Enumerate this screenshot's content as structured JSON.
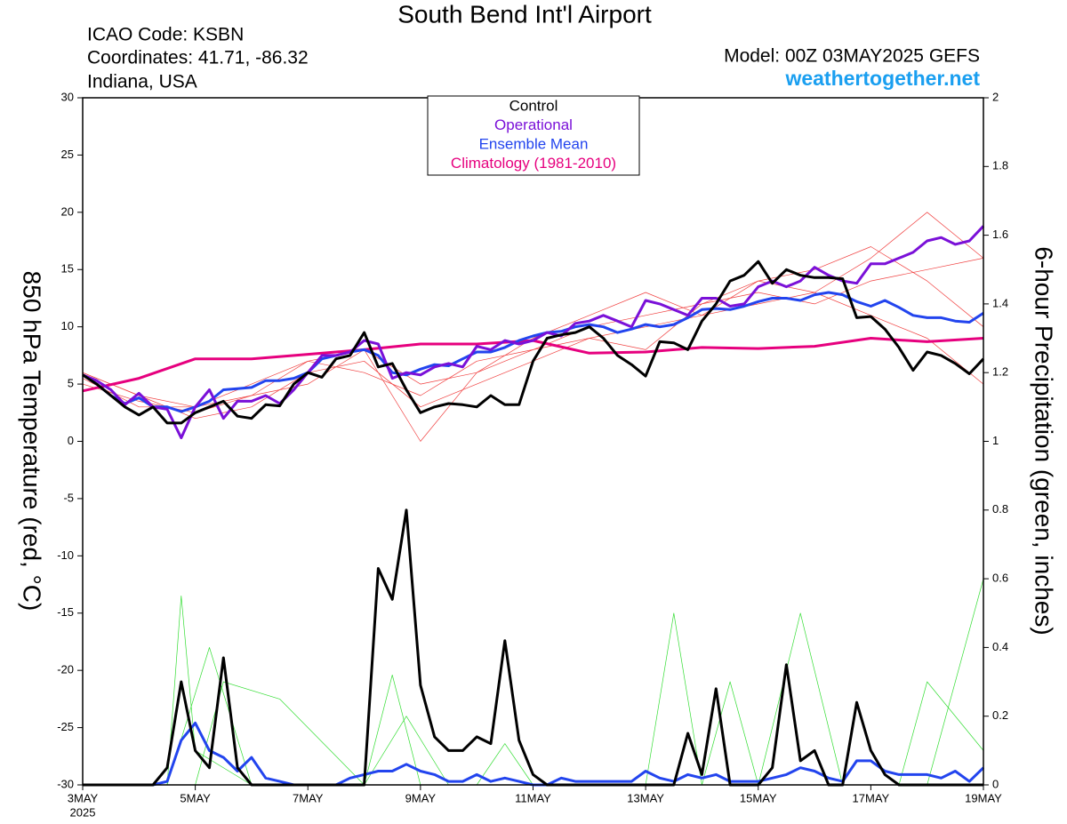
{
  "chart_data": {
    "type": "line",
    "title": "South Bend Int'l Airport",
    "info": [
      "ICAO Code: KSBN",
      "Coordinates: 41.71, -86.32",
      "Indiana, USA"
    ],
    "model": "Model: 00Z 03MAY2025 GEFS",
    "source": "weathertogether.net",
    "year_label": "2025",
    "ylabel": "850 hPa Temperature (red, °C)",
    "y2label": "6-hour Precipitation (green, inches)",
    "x": [
      0,
      0.25,
      0.5,
      0.75,
      1,
      1.25,
      1.5,
      1.75,
      2,
      2.25,
      2.5,
      2.75,
      3,
      3.25,
      3.5,
      3.75,
      4,
      4.25,
      4.5,
      4.75,
      5,
      5.25,
      5.5,
      5.75,
      6,
      6.25,
      6.5,
      6.75,
      7,
      7.25,
      7.5,
      7.75,
      8,
      8.25,
      8.5,
      8.75,
      9,
      9.25,
      9.5,
      9.75,
      10,
      10.25,
      10.5,
      10.75,
      11,
      11.25,
      11.5,
      11.75,
      12,
      12.25,
      12.5,
      12.75,
      13,
      13.25,
      13.5,
      13.75,
      14,
      14.25,
      14.5,
      14.75,
      15,
      15.25,
      15.5,
      15.75,
      16
    ],
    "xlim": [
      0,
      16
    ],
    "xticks": [
      {
        "value": 0,
        "label": "3MAY"
      },
      {
        "value": 2,
        "label": "5MAY"
      },
      {
        "value": 4,
        "label": "7MAY"
      },
      {
        "value": 6,
        "label": "9MAY"
      },
      {
        "value": 8,
        "label": "11MAY"
      },
      {
        "value": 10,
        "label": "13MAY"
      },
      {
        "value": 12,
        "label": "15MAY"
      },
      {
        "value": 14,
        "label": "17MAY"
      },
      {
        "value": 16,
        "label": "19MAY"
      }
    ],
    "ylim": [
      -30,
      30
    ],
    "yticks": [
      -30,
      -25,
      -20,
      -15,
      -10,
      -5,
      0,
      5,
      10,
      15,
      20,
      25,
      30
    ],
    "y2lim": [
      0,
      2
    ],
    "y2ticks": [
      0,
      0.2,
      0.4,
      0.6,
      0.8,
      1,
      1.2,
      1.4,
      1.6,
      1.8,
      2
    ],
    "grid": false,
    "legend": "top-center",
    "series": [
      {
        "color": "#f04040",
        "width": 0.7,
        "x": [
          0,
          1,
          2,
          3,
          4,
          5,
          6,
          7,
          8,
          9,
          10,
          11,
          12,
          13,
          14,
          15,
          16
        ],
        "values": [
          5.5,
          3,
          3,
          4,
          7,
          8,
          5,
          6,
          8,
          10,
          11,
          12,
          14,
          13,
          16,
          20,
          16
        ]
      },
      {
        "color": "#f04040",
        "width": 0.7,
        "x": [
          0,
          1,
          2,
          3,
          4,
          5,
          6,
          7,
          8,
          9,
          10,
          11,
          12,
          13,
          14,
          15,
          16
        ],
        "values": [
          6,
          4,
          2,
          3,
          6,
          7,
          3,
          5,
          7,
          9,
          10,
          11,
          12,
          13,
          11,
          9,
          5
        ]
      },
      {
        "color": "#f04040",
        "width": 0.7,
        "x": [
          0,
          1,
          2,
          3,
          4,
          5,
          6,
          7,
          8,
          9,
          10,
          11,
          12,
          13,
          14,
          15,
          16
        ],
        "values": [
          5,
          3.5,
          2.5,
          4,
          5,
          8,
          0,
          6,
          9,
          11,
          13,
          11,
          14,
          15,
          17,
          14,
          10
        ]
      },
      {
        "color": "#f04040",
        "width": 0.7,
        "x": [
          0,
          1,
          2,
          3,
          4,
          5,
          6,
          7,
          8,
          9,
          10,
          11,
          12,
          13,
          14,
          15,
          16
        ],
        "values": [
          6,
          4,
          3,
          5,
          7,
          6,
          4,
          7,
          8,
          9,
          8,
          12,
          13,
          12,
          14,
          15,
          16
        ]
      },
      {
        "color": "#33dd33",
        "width": 0.7,
        "axis": "y2",
        "x": [
          0,
          1.5,
          1.75,
          2,
          3,
          5,
          5.5,
          6,
          10,
          10.5,
          11,
          16
        ],
        "values": [
          0,
          0,
          0.55,
          0.1,
          0,
          0,
          0.32,
          0,
          0,
          0.5,
          0,
          0
        ]
      },
      {
        "color": "#33dd33",
        "width": 0.7,
        "axis": "y2",
        "x": [
          0,
          1.5,
          2.25,
          3,
          7,
          7.5,
          8,
          12,
          12.75,
          13.5,
          15,
          16
        ],
        "values": [
          0,
          0,
          0.4,
          0,
          0,
          0.12,
          0,
          0,
          0.5,
          0,
          0,
          0.6
        ]
      },
      {
        "color": "#33dd33",
        "width": 0.7,
        "axis": "y2",
        "x": [
          0,
          2,
          2.5,
          3.5,
          5,
          5.75,
          6.5,
          11,
          11.5,
          12,
          14.5,
          15,
          16
        ],
        "values": [
          0,
          0,
          0.3,
          0.25,
          0,
          0.2,
          0,
          0,
          0.3,
          0,
          0,
          0.3,
          0.1
        ]
      },
      {
        "name": "Climatology (1981-2010)",
        "color": "#e6007e",
        "width": 3,
        "x": [
          0,
          1,
          2,
          3,
          4,
          5,
          6,
          7,
          8,
          9,
          10,
          11,
          12,
          13,
          14,
          15,
          16
        ],
        "values": [
          4.4,
          5.5,
          7.2,
          7.2,
          7.6,
          8,
          8.5,
          8.5,
          8.8,
          7.7,
          7.8,
          8.2,
          8.1,
          8.3,
          9,
          8.7,
          9
        ]
      },
      {
        "name": "Ensemble Mean",
        "color": "#2244ee",
        "width": 3,
        "values": [
          5.8,
          5,
          4,
          3.3,
          3.8,
          3,
          3,
          2.6,
          3,
          3.5,
          4.5,
          4.6,
          4.7,
          5.3,
          5.3,
          5.5,
          6,
          7.2,
          7.5,
          7.8,
          8,
          7.5,
          6,
          5.8,
          6.3,
          6.7,
          6.6,
          7.2,
          7.8,
          7.8,
          8.2,
          8.8,
          9.2,
          9.5,
          9.6,
          10,
          10.2,
          10,
          9.5,
          9.8,
          10.2,
          10,
          10.2,
          10.8,
          11.5,
          11.6,
          11.5,
          11.8,
          12.2,
          12.5,
          12.5,
          12.3,
          12.8,
          13,
          12.8,
          12.2,
          11.8,
          12.3,
          11.7,
          11,
          10.8,
          10.8,
          10.5,
          10.4,
          11.2
        ]
      },
      {
        "name": "Operational",
        "color": "#7a10d8",
        "width": 3,
        "values": [
          5.8,
          5.3,
          4.5,
          3.2,
          4.2,
          3,
          2.8,
          0.3,
          3,
          4.5,
          2,
          3.5,
          3.5,
          4,
          3.3,
          4.5,
          6,
          7.5,
          7.5,
          7.8,
          8.8,
          8.5,
          5.5,
          6,
          5.8,
          6.5,
          6.8,
          6.5,
          8.3,
          8,
          8.8,
          8.5,
          8.8,
          9.5,
          9.2,
          10.3,
          10.5,
          11,
          10.5,
          10,
          12.3,
          12,
          11.5,
          11,
          12.5,
          12.5,
          11.8,
          12,
          13.5,
          14,
          13.5,
          14,
          15.2,
          14.5,
          14,
          13.8,
          15.5,
          15.5,
          16,
          16.5,
          17.5,
          17.8,
          17.2,
          17.5,
          18.8
        ]
      },
      {
        "name": "Control",
        "color": "#000000",
        "width": 3,
        "values": [
          5.8,
          5,
          4,
          3,
          2.3,
          3,
          1.6,
          1.6,
          2.5,
          3,
          3.5,
          2.2,
          2,
          3.2,
          3.1,
          5,
          6,
          5.6,
          7.2,
          7.5,
          9.5,
          6.5,
          6.8,
          4.5,
          2.5,
          3,
          3.3,
          3.2,
          3,
          4,
          3.2,
          3.2,
          7,
          9,
          9.3,
          9.5,
          10,
          9,
          7.5,
          6.7,
          5.7,
          8.7,
          8.6,
          8,
          10.5,
          12,
          14,
          14.5,
          15.7,
          13.8,
          15,
          14.5,
          14.3,
          14.3,
          14.2,
          10.8,
          10.9,
          9.8,
          8.2,
          6.2,
          7.8,
          7.5,
          6.8,
          5.9,
          7.2
        ]
      },
      {
        "color": "#2244ee",
        "width": 3,
        "axis": "y2",
        "values": [
          0,
          0,
          0,
          0,
          0,
          0,
          0.01,
          0.13,
          0.18,
          0.1,
          0.08,
          0.04,
          0.08,
          0.02,
          0.01,
          0,
          0,
          0,
          0,
          0.02,
          0.03,
          0.04,
          0.04,
          0.06,
          0.04,
          0.03,
          0.01,
          0.01,
          0.03,
          0.01,
          0.02,
          0.01,
          0,
          0,
          0.02,
          0.01,
          0.01,
          0.01,
          0.01,
          0.01,
          0.04,
          0.02,
          0.01,
          0.03,
          0.02,
          0.03,
          0.01,
          0.01,
          0.01,
          0.02,
          0.03,
          0.05,
          0.04,
          0.02,
          0.01,
          0.07,
          0.07,
          0.04,
          0.03,
          0.03,
          0.03,
          0.02,
          0.04,
          0.01,
          0.05
        ]
      },
      {
        "color": "#000000",
        "width": 3,
        "axis": "y2",
        "values": [
          0,
          0,
          0,
          0,
          0,
          0,
          0.05,
          0.3,
          0.1,
          0.05,
          0.37,
          0.05,
          0,
          0,
          0,
          0,
          0,
          0,
          0,
          0,
          0,
          0.63,
          0.54,
          0.8,
          0.29,
          0.14,
          0.1,
          0.1,
          0.14,
          0.12,
          0.42,
          0.13,
          0.03,
          0,
          0,
          0,
          0,
          0,
          0,
          0,
          0,
          0,
          0,
          0.15,
          0.03,
          0.28,
          0,
          0,
          0,
          0.05,
          0.35,
          0.07,
          0.1,
          0,
          0,
          0.24,
          0.1,
          0.03,
          0,
          0,
          0,
          0,
          0,
          0,
          0
        ]
      }
    ]
  }
}
